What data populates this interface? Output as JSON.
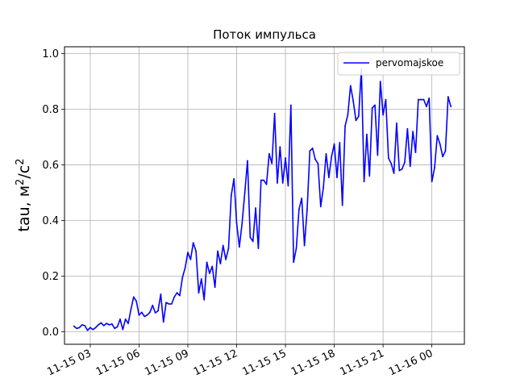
{
  "chart_data": {
    "type": "line",
    "title": "Поток импульса",
    "xlabel": "",
    "ylabel": "tau, м",
    "ylabel_sup1": "2",
    "ylabel_mid": "/с",
    "ylabel_sup2": "2",
    "x_start": "2023-11-15 02:00",
    "x_step_minutes": 10,
    "x_tick_labels": [
      "11-15 03",
      "11-15 06",
      "11-15 09",
      "11-15 12",
      "11-15 15",
      "11-15 18",
      "11-15 21",
      "11-16 00"
    ],
    "y_tick_labels": [
      "0.0",
      "0.2",
      "0.4",
      "0.6",
      "0.8",
      "1.0"
    ],
    "ylim": [
      -0.045,
      1.025
    ],
    "grid": true,
    "legend_position": "top-right",
    "colors": {
      "series": "#0000ff",
      "grid": "#b0b0b0",
      "axis": "#000000"
    },
    "series": [
      {
        "name": "pervomajskoe",
        "values": [
          0.02,
          0.012,
          0.015,
          0.025,
          0.022,
          0.005,
          0.015,
          0.008,
          0.015,
          0.025,
          0.032,
          0.022,
          0.03,
          0.025,
          0.028,
          0.012,
          0.018,
          0.045,
          0.008,
          0.045,
          0.03,
          0.08,
          0.125,
          0.11,
          0.06,
          0.07,
          0.055,
          0.06,
          0.07,
          0.095,
          0.068,
          0.075,
          0.135,
          0.035,
          0.105,
          0.1,
          0.1,
          0.125,
          0.14,
          0.13,
          0.195,
          0.23,
          0.285,
          0.26,
          0.32,
          0.29,
          0.14,
          0.19,
          0.115,
          0.25,
          0.21,
          0.235,
          0.16,
          0.29,
          0.245,
          0.31,
          0.26,
          0.3,
          0.49,
          0.55,
          0.39,
          0.305,
          0.39,
          0.5,
          0.615,
          0.34,
          0.325,
          0.445,
          0.3,
          0.545,
          0.545,
          0.53,
          0.64,
          0.605,
          0.785,
          0.535,
          0.665,
          0.535,
          0.625,
          0.525,
          0.815,
          0.25,
          0.3,
          0.44,
          0.48,
          0.31,
          0.44,
          0.65,
          0.66,
          0.62,
          0.605,
          0.45,
          0.52,
          0.64,
          0.555,
          0.63,
          0.675,
          0.555,
          0.68,
          0.455,
          0.74,
          0.78,
          0.885,
          0.83,
          0.76,
          0.775,
          0.945,
          0.54,
          0.71,
          0.56,
          0.805,
          0.815,
          0.635,
          0.9,
          0.78,
          0.835,
          0.625,
          0.605,
          0.57,
          0.75,
          0.58,
          0.585,
          0.61,
          0.73,
          0.595,
          0.72,
          0.645,
          0.835,
          0.835,
          0.835,
          0.81,
          0.84,
          0.54,
          0.59,
          0.705,
          0.675,
          0.63,
          0.65,
          0.845,
          0.81
        ]
      }
    ]
  }
}
